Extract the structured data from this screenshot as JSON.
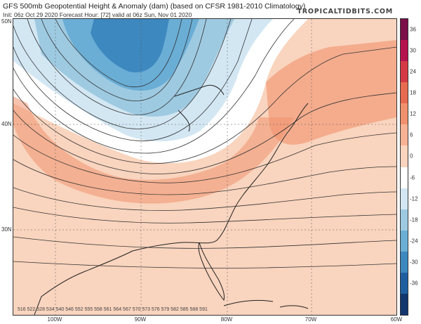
{
  "header": {
    "title": "GFS 500mb Geopotential Height & Anomaly (dam) (based on CFSR 1981-2010 Climatology)",
    "subtitle": "Init: 06z Oct 29 2020   Forecast Hour: [72]   valid at 06z Sun, Nov 01 2020",
    "brand": "TROPICALTIDBITS.COM"
  },
  "map": {
    "lat_labels": [
      "50N",
      "40N",
      "30N"
    ],
    "lon_labels": [
      "100W",
      "90W",
      "80W",
      "70W",
      "60W"
    ],
    "contour_labels": [
      "516",
      "522",
      "528",
      "534",
      "540",
      "546",
      "552",
      "555",
      "558",
      "561",
      "564",
      "567",
      "570",
      "573",
      "576",
      "579",
      "582",
      "585",
      "588",
      "591"
    ]
  },
  "colorbar": {
    "ticks": [
      "36",
      "30",
      "24",
      "18",
      "12",
      "6",
      "0",
      "-6",
      "-12",
      "-18",
      "-24",
      "-30",
      "-36"
    ],
    "colors": [
      "#7a0f4a",
      "#b5134d",
      "#d33a45",
      "#e66a4f",
      "#f0916d",
      "#f7b295",
      "#f9d4be",
      "#ffffff",
      "#d3e7f3",
      "#9ecae1",
      "#6aaed6",
      "#3d88bf",
      "#1f5fa0",
      "#12366e"
    ]
  }
}
